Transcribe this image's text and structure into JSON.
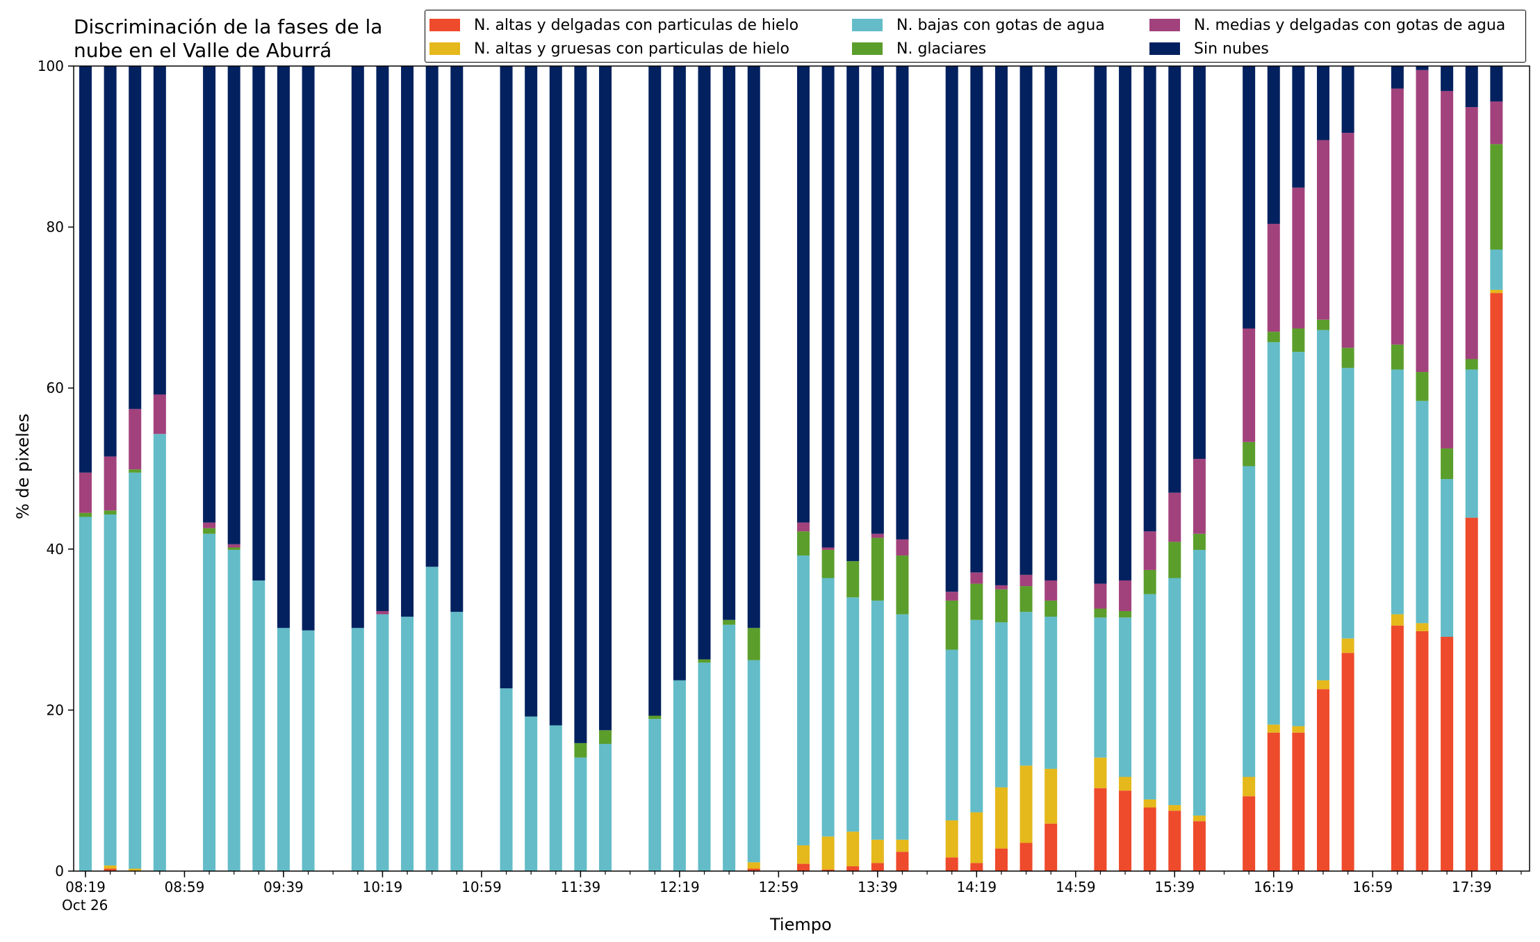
{
  "chart_data": {
    "type": "bar",
    "stacked": true,
    "title_lines": [
      "Discriminación de la fases de la",
      "nube en el Valle de Aburrá"
    ],
    "xlabel": "Tiempo",
    "ylabel": "% de pixeles",
    "ylim": [
      0,
      100
    ],
    "yticks": [
      "0",
      "20",
      "40",
      "60",
      "80",
      "100"
    ],
    "xtick_labels": [
      "08:19",
      "08:59",
      "09:39",
      "10:19",
      "10:59",
      "11:39",
      "12:19",
      "12:59",
      "13:39",
      "14:19",
      "14:59",
      "15:39",
      "16:19",
      "16:59",
      "17:39"
    ],
    "xtick_sublabel": "Oct 26",
    "legend_position": "top-right",
    "series": [
      {
        "name": "N. altas y delgadas con particulas de hielo",
        "color": "#ee4a2c"
      },
      {
        "name": "N. altas y gruesas con particulas de hielo",
        "color": "#e5b81b"
      },
      {
        "name": "N. bajas con gotas de agua",
        "color": "#63bcc8"
      },
      {
        "name": "N. glaciares",
        "color": "#5b9e2c"
      },
      {
        "name": "N. medias y delgadas con gotas de agua",
        "color": "#a2427c"
      },
      {
        "name": "Sin nubes",
        "color": "#03215f"
      }
    ],
    "legend_order": [
      0,
      2,
      4,
      1,
      3,
      5
    ],
    "time_slots": 58,
    "bars": [
      {
        "slot": 0,
        "values": [
          0,
          0,
          44.0,
          0.5,
          5.0,
          50.5
        ]
      },
      {
        "slot": 1,
        "values": [
          0.3,
          0.4,
          43.6,
          0.5,
          6.7,
          48.5
        ]
      },
      {
        "slot": 2,
        "values": [
          0,
          0.3,
          49.2,
          0.4,
          7.5,
          42.6
        ]
      },
      {
        "slot": 3,
        "values": [
          0,
          0,
          54.3,
          0,
          4.9,
          40.8
        ]
      },
      {
        "slot": 5,
        "values": [
          0,
          0,
          41.9,
          0.7,
          0.7,
          56.7
        ]
      },
      {
        "slot": 6,
        "values": [
          0,
          0,
          39.9,
          0.3,
          0.4,
          59.4
        ]
      },
      {
        "slot": 7,
        "values": [
          0,
          0,
          36.1,
          0,
          0,
          63.9
        ]
      },
      {
        "slot": 8,
        "values": [
          0,
          0,
          30.2,
          0,
          0,
          69.8
        ]
      },
      {
        "slot": 9,
        "values": [
          0,
          0,
          29.9,
          0,
          0,
          70.1
        ]
      },
      {
        "slot": 11,
        "values": [
          0,
          0,
          30.2,
          0,
          0,
          69.8
        ]
      },
      {
        "slot": 12,
        "values": [
          0,
          0,
          31.9,
          0,
          0.4,
          67.7
        ]
      },
      {
        "slot": 13,
        "values": [
          0,
          0,
          31.6,
          0,
          0,
          68.4
        ]
      },
      {
        "slot": 14,
        "values": [
          0,
          0,
          37.8,
          0,
          0,
          62.2
        ]
      },
      {
        "slot": 15,
        "values": [
          0,
          0,
          32.2,
          0,
          0,
          67.8
        ]
      },
      {
        "slot": 17,
        "values": [
          0,
          0,
          22.7,
          0,
          0,
          77.3
        ]
      },
      {
        "slot": 18,
        "values": [
          0,
          0,
          19.2,
          0,
          0,
          80.8
        ]
      },
      {
        "slot": 19,
        "values": [
          0,
          0,
          18.1,
          0,
          0,
          81.9
        ]
      },
      {
        "slot": 20,
        "values": [
          0,
          0,
          14.1,
          1.8,
          0,
          84.1
        ]
      },
      {
        "slot": 21,
        "values": [
          0,
          0,
          15.8,
          1.7,
          0,
          82.5
        ]
      },
      {
        "slot": 23,
        "values": [
          0,
          0,
          18.9,
          0.4,
          0,
          80.7
        ]
      },
      {
        "slot": 24,
        "values": [
          0,
          0,
          23.7,
          0,
          0,
          76.3
        ]
      },
      {
        "slot": 25,
        "values": [
          0,
          0,
          25.9,
          0.4,
          0,
          73.7
        ]
      },
      {
        "slot": 26,
        "values": [
          0,
          0,
          30.6,
          0.6,
          0,
          68.8
        ]
      },
      {
        "slot": 27,
        "values": [
          0.3,
          0.8,
          25.1,
          4.0,
          0,
          69.8
        ]
      },
      {
        "slot": 29,
        "values": [
          0.9,
          2.3,
          36.0,
          3.0,
          1.1,
          56.7
        ]
      },
      {
        "slot": 30,
        "values": [
          0.2,
          4.1,
          32.1,
          3.5,
          0.3,
          59.8
        ]
      },
      {
        "slot": 31,
        "values": [
          0.6,
          4.3,
          29.1,
          4.5,
          0,
          61.5
        ]
      },
      {
        "slot": 32,
        "values": [
          1.0,
          2.9,
          29.7,
          7.8,
          0.5,
          58.1
        ]
      },
      {
        "slot": 33,
        "values": [
          2.4,
          1.5,
          28.0,
          7.3,
          2.0,
          58.8
        ]
      },
      {
        "slot": 35,
        "values": [
          1.7,
          4.6,
          21.2,
          6.1,
          1.1,
          65.3
        ]
      },
      {
        "slot": 36,
        "values": [
          1.0,
          6.3,
          23.9,
          4.5,
          1.4,
          62.9
        ]
      },
      {
        "slot": 37,
        "values": [
          2.8,
          7.6,
          20.5,
          4.1,
          0.5,
          64.5
        ]
      },
      {
        "slot": 38,
        "values": [
          3.5,
          9.6,
          19.1,
          3.2,
          1.4,
          63.2
        ]
      },
      {
        "slot": 39,
        "values": [
          5.9,
          6.8,
          18.9,
          2.0,
          2.5,
          63.9
        ]
      },
      {
        "slot": 41,
        "values": [
          10.3,
          3.8,
          17.4,
          1.1,
          3.1,
          64.3
        ]
      },
      {
        "slot": 42,
        "values": [
          10.0,
          1.7,
          19.8,
          0.8,
          3.8,
          63.9
        ]
      },
      {
        "slot": 43,
        "values": [
          7.9,
          1.0,
          25.5,
          3.0,
          4.8,
          57.8
        ]
      },
      {
        "slot": 44,
        "values": [
          7.5,
          0.7,
          28.2,
          4.5,
          6.1,
          53.0
        ]
      },
      {
        "slot": 45,
        "values": [
          6.2,
          0.7,
          33.0,
          2.0,
          9.3,
          48.8
        ]
      },
      {
        "slot": 47,
        "values": [
          9.3,
          2.4,
          38.6,
          3.0,
          14.1,
          32.6
        ]
      },
      {
        "slot": 48,
        "values": [
          17.2,
          1.0,
          47.5,
          1.3,
          13.4,
          19.6
        ]
      },
      {
        "slot": 49,
        "values": [
          17.2,
          0.8,
          46.5,
          2.9,
          17.5,
          15.1
        ]
      },
      {
        "slot": 50,
        "values": [
          22.6,
          1.1,
          43.5,
          1.3,
          22.3,
          9.2
        ]
      },
      {
        "slot": 51,
        "values": [
          27.1,
          1.8,
          33.6,
          2.5,
          26.7,
          8.3
        ]
      },
      {
        "slot": 53,
        "values": [
          30.5,
          1.4,
          30.4,
          3.1,
          31.8,
          2.8
        ]
      },
      {
        "slot": 54,
        "values": [
          29.8,
          1.0,
          27.6,
          3.6,
          37.5,
          0.5
        ]
      },
      {
        "slot": 55,
        "values": [
          29.1,
          0,
          19.6,
          3.8,
          44.4,
          3.1
        ]
      },
      {
        "slot": 56,
        "values": [
          43.9,
          0,
          18.4,
          1.3,
          31.3,
          5.1
        ]
      },
      {
        "slot": 57,
        "values": [
          71.8,
          0.4,
          5.0,
          13.1,
          5.3,
          4.4
        ]
      }
    ]
  }
}
